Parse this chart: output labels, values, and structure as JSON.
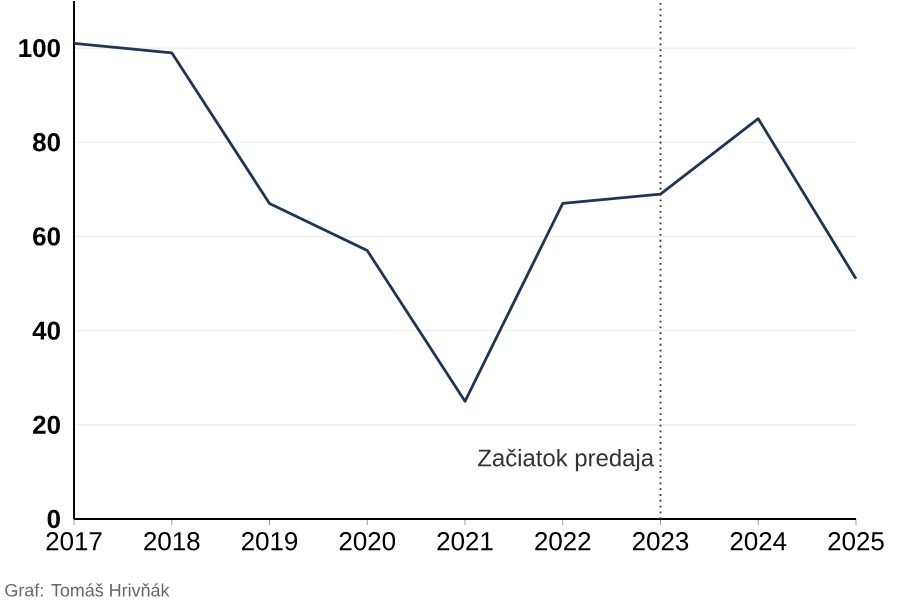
{
  "chart_data": {
    "type": "line",
    "x": [
      2017,
      2018,
      2019,
      2020,
      2021,
      2022,
      2023,
      2024,
      2025
    ],
    "series": [
      {
        "color": "#1f3556",
        "values": [
          101,
          99,
          67,
          57,
          25,
          67,
          69,
          85,
          51
        ]
      }
    ],
    "xlim": [
      2017,
      2025
    ],
    "ylim": [
      0,
      110
    ],
    "xticks": [
      2017,
      2018,
      2019,
      2020,
      2021,
      2022,
      2023,
      2024,
      2025
    ],
    "yticks": [
      0,
      20,
      40,
      60,
      80,
      100
    ],
    "grid": "y",
    "marker": "none",
    "line_style": "solid",
    "ref_lines": [
      {
        "axis": "x",
        "value": 2023,
        "label": "Začiatok predaja",
        "color": "#333333",
        "line_style": "dotted"
      }
    ],
    "annotations": [
      "Graf: Tomáš Hrivňák"
    ]
  }
}
